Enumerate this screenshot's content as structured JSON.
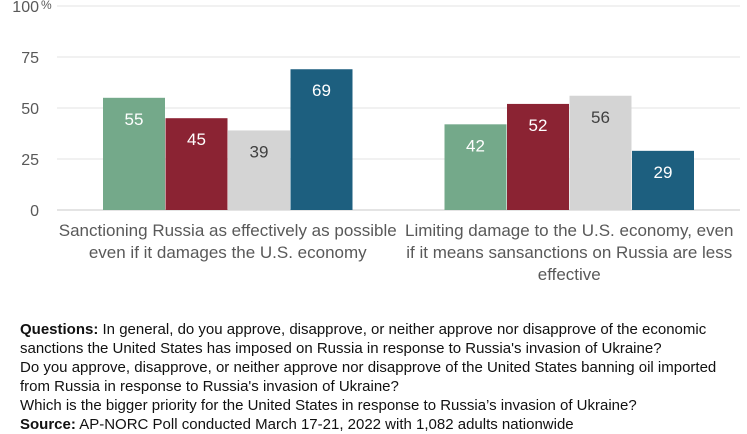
{
  "chart_data": {
    "type": "bar",
    "ylim": [
      0,
      100
    ],
    "yticks": [
      0,
      25,
      50,
      75,
      100
    ],
    "y_unit_label": "%",
    "grid": true,
    "categories": [
      "Sanctioning Russia as effectively as possible even if it damages the U.S. economy",
      "Limiting damage to the U.S. economy, even if it means sansanctions on Russia are less effective"
    ],
    "series": [
      {
        "color": "#74a98a",
        "values": [
          55,
          42
        ]
      },
      {
        "color": "#8b2333",
        "values": [
          45,
          52
        ]
      },
      {
        "color": "#d4d4d4",
        "values": [
          39,
          56
        ]
      },
      {
        "color": "#1d5f7f",
        "values": [
          69,
          29
        ]
      }
    ],
    "label_colors": [
      "#ffffff",
      "#ffffff",
      "#404040",
      "#ffffff"
    ]
  },
  "notes": {
    "questions_label": "Questions:",
    "questions_text": "In general, do you approve, disapprove, or neither approve nor disapprove of the economic sanctions the United States has imposed on Russia in response to Russia's invasion of Ukraine?",
    "question2": "Do you approve, disapprove, or neither approve nor disapprove of the United States banning oil imported from Russia in response to Russia's invasion of Ukraine?",
    "question3": "Which is the bigger priority for the United States in response to Russia’s invasion of Ukraine?",
    "source_label": "Source:",
    "source_text": "AP-NORC Poll conducted March 17-21, 2022 with 1,082 adults nationwide"
  }
}
